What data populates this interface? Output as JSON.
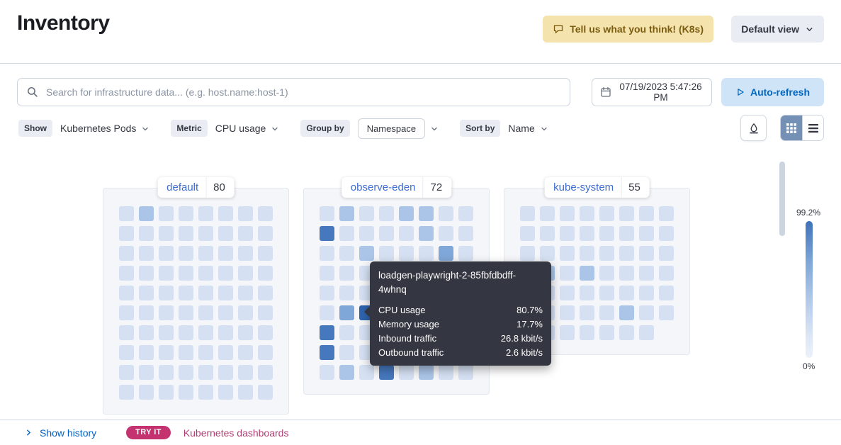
{
  "header": {
    "title": "Inventory",
    "feedback_button": "Tell us what you think! (K8s)",
    "view_selector": "Default view"
  },
  "search": {
    "placeholder": "Search for infrastructure data... (e.g. host.name:host-1)",
    "datetime": "07/19/2023 5:47:26 PM",
    "auto_refresh_label": "Auto-refresh"
  },
  "filters": {
    "show": {
      "label": "Show",
      "value": "Kubernetes Pods"
    },
    "metric": {
      "label": "Metric",
      "value": "CPU usage"
    },
    "group_by": {
      "label": "Group by",
      "value": "Namespace"
    },
    "sort_by": {
      "label": "Sort by",
      "value": "Name"
    }
  },
  "cell_colors": [
    "#d5e1f3",
    "#abc5e8",
    "#7fa7d8",
    "#4678bd",
    "#2e63ad"
  ],
  "groups": [
    {
      "name": "default",
      "count": "80",
      "cols": 8,
      "cells": [
        0,
        1,
        0,
        0,
        0,
        0,
        0,
        0,
        0,
        0,
        0,
        0,
        0,
        0,
        0,
        0,
        0,
        0,
        0,
        0,
        0,
        0,
        0,
        0,
        0,
        0,
        0,
        0,
        0,
        0,
        0,
        0,
        0,
        0,
        0,
        0,
        0,
        0,
        0,
        0,
        0,
        0,
        0,
        0,
        0,
        0,
        0,
        0,
        0,
        0,
        0,
        0,
        0,
        0,
        0,
        0,
        0,
        0,
        0,
        0,
        0,
        0,
        0,
        0,
        0,
        0,
        0,
        0,
        0,
        0,
        0,
        0,
        0,
        0,
        0,
        0,
        0,
        0,
        0,
        0
      ]
    },
    {
      "name": "observe-eden",
      "count": "72",
      "cols": 8,
      "cells": [
        0,
        1,
        0,
        0,
        1,
        1,
        0,
        0,
        3,
        0,
        0,
        0,
        0,
        1,
        0,
        0,
        0,
        0,
        1,
        0,
        0,
        0,
        2,
        0,
        0,
        0,
        0,
        0,
        0,
        0,
        0,
        0,
        0,
        0,
        0,
        0,
        0,
        0,
        0,
        0,
        0,
        2,
        4,
        0,
        0,
        0,
        0,
        0,
        3,
        0,
        0,
        0,
        0,
        0,
        0,
        0,
        3,
        0,
        0,
        0,
        0,
        0,
        0,
        0,
        0,
        1,
        0,
        3,
        0,
        1,
        0,
        0
      ]
    },
    {
      "name": "kube-system",
      "count": "55",
      "cols": 8,
      "cells": [
        0,
        0,
        0,
        0,
        0,
        0,
        0,
        0,
        0,
        0,
        0,
        0,
        0,
        0,
        0,
        0,
        0,
        0,
        0,
        0,
        0,
        0,
        0,
        0,
        0,
        1,
        0,
        1,
        0,
        0,
        0,
        0,
        0,
        0,
        0,
        0,
        0,
        0,
        0,
        0,
        1,
        0,
        0,
        0,
        0,
        1,
        0,
        0,
        0,
        0,
        0,
        0,
        0,
        0,
        0
      ]
    }
  ],
  "tooltip": {
    "title": "loadgen-playwright-2-85fbfdbdff-4whnq",
    "metrics": [
      {
        "label": "CPU usage",
        "value": "80.7%"
      },
      {
        "label": "Memory usage",
        "value": "17.7%"
      },
      {
        "label": "Inbound traffic",
        "value": "26.8 kbit/s"
      },
      {
        "label": "Outbound traffic",
        "value": "2.6 kbit/s"
      }
    ]
  },
  "legend": {
    "max_label": "99.2%",
    "min_label": "0%"
  },
  "footer": {
    "show_history": "Show history",
    "try_it": "TRY IT",
    "dashboards_link": "Kubernetes dashboards"
  }
}
